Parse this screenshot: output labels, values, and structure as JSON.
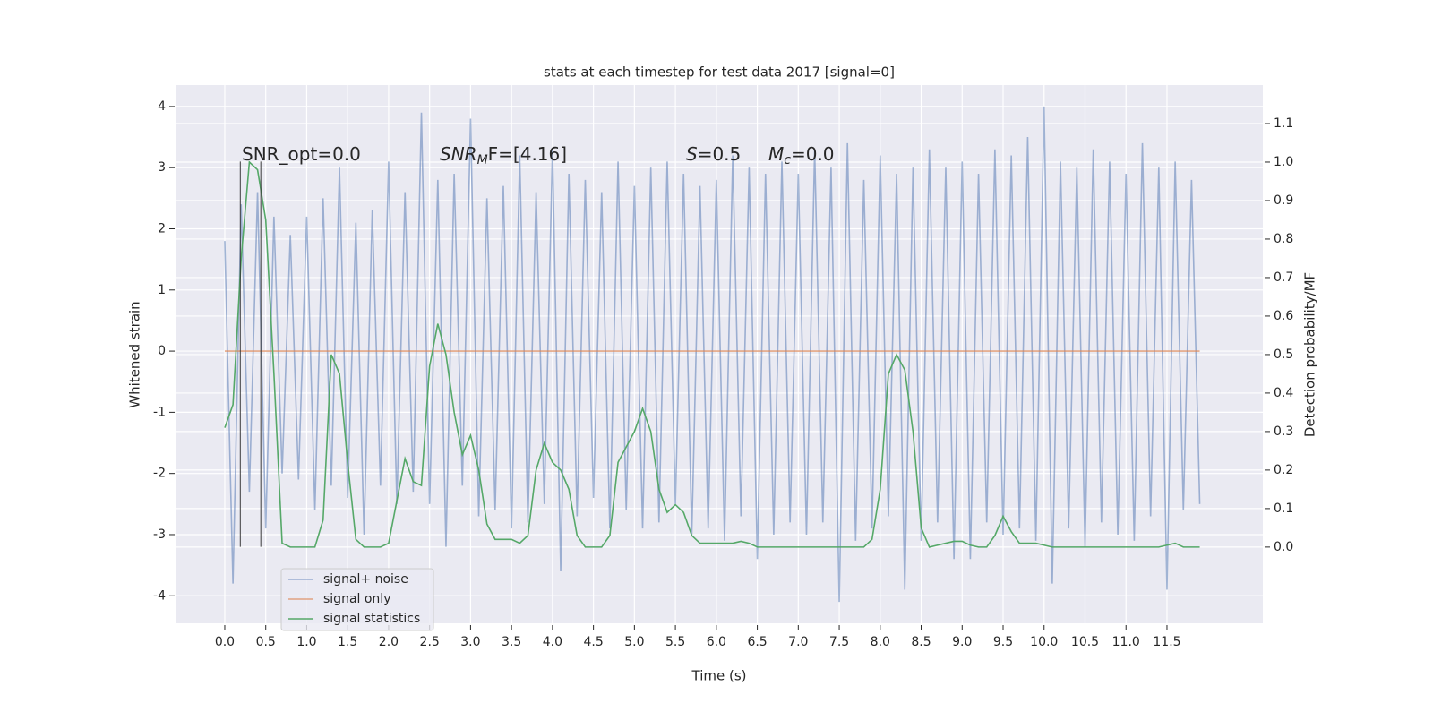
{
  "chart_data": {
    "type": "line",
    "title": "stats at each timestep for test data 2017 [signal=0]",
    "x_label": "Time (s)",
    "y_label": "Whitened strain",
    "y2_label": "Detection probability/MF",
    "annotations": [
      {
        "text": "SNR_opt=0.0"
      },
      {
        "italic": "SNR",
        "sub": "M",
        "rest": "F=[4.16]"
      },
      {
        "italic": "S",
        "rest": "=0.5"
      },
      {
        "italic": "M",
        "sub": "c",
        "rest": "=0.0"
      }
    ],
    "x": [
      0,
      0.1,
      0.2,
      0.3,
      0.4,
      0.5,
      0.6,
      0.7,
      0.8,
      0.9,
      1,
      1.1,
      1.2,
      1.3,
      1.4,
      1.5,
      1.6,
      1.7,
      1.8,
      1.9,
      2,
      2.1,
      2.2,
      2.3,
      2.4,
      2.5,
      2.6,
      2.7,
      2.8,
      2.9,
      3,
      3.1,
      3.2,
      3.3,
      3.4,
      3.5,
      3.6,
      3.7,
      3.8,
      3.9,
      4,
      4.1,
      4.2,
      4.3,
      4.4,
      4.5,
      4.6,
      4.7,
      4.8,
      4.9,
      5,
      5.1,
      5.2,
      5.3,
      5.4,
      5.5,
      5.6,
      5.7,
      5.8,
      5.9,
      6,
      6.1,
      6.2,
      6.3,
      6.4,
      6.5,
      6.6,
      6.7,
      6.8,
      6.9,
      7,
      7.1,
      7.2,
      7.3,
      7.4,
      7.5,
      7.6,
      7.7,
      7.8,
      7.9,
      8,
      8.1,
      8.2,
      8.3,
      8.4,
      8.5,
      8.6,
      8.7,
      8.8,
      8.9,
      9,
      9.1,
      9.2,
      9.3,
      9.4,
      9.5,
      9.6,
      9.7,
      9.8,
      9.9,
      10,
      10.1,
      10.2,
      10.3,
      10.4,
      10.5,
      10.6,
      10.7,
      10.8,
      10.9,
      11,
      11.1,
      11.2,
      11.3,
      11.4,
      11.5,
      11.6,
      11.7,
      11.8,
      11.9
    ],
    "series": [
      {
        "name": "signal+ noise",
        "color": "#4c72b0",
        "opacity": 0.5,
        "values": [
          1.8,
          -3.8,
          2.4,
          -2.3,
          2.6,
          -2.9,
          2.2,
          -2.0,
          1.9,
          -2.1,
          2.2,
          -2.6,
          2.5,
          -2.2,
          3.0,
          -2.4,
          2.1,
          -3.0,
          2.3,
          -2.2,
          3.1,
          -2.5,
          2.6,
          -2.3,
          3.9,
          -2.5,
          2.8,
          -3.2,
          2.9,
          -2.2,
          3.8,
          -2.7,
          2.5,
          -2.6,
          2.7,
          -2.9,
          3.2,
          -2.8,
          2.6,
          -2.5,
          3.3,
          -3.6,
          2.9,
          -2.7,
          2.8,
          -2.4,
          2.6,
          -2.9,
          3.1,
          -2.6,
          2.7,
          -2.9,
          3.0,
          -2.8,
          3.1,
          -2.5,
          2.9,
          -3.0,
          2.7,
          -2.9,
          2.8,
          -3.1,
          3.2,
          -2.7,
          3.0,
          -3.4,
          2.9,
          -3.0,
          3.1,
          -2.8,
          2.9,
          -3.0,
          3.3,
          -2.8,
          3.0,
          -4.1,
          3.4,
          -3.1,
          2.8,
          -2.9,
          3.2,
          -2.7,
          2.9,
          -3.9,
          3.0,
          -3.1,
          3.3,
          -2.8,
          3.0,
          -3.4,
          3.1,
          -3.4,
          2.9,
          -2.8,
          3.3,
          -3.0,
          3.2,
          -2.9,
          3.5,
          -3.1,
          4.0,
          -3.8,
          3.1,
          -2.9,
          3.0,
          -3.2,
          3.3,
          -2.8,
          3.1,
          -3.0,
          2.9,
          -3.1,
          3.4,
          -2.7,
          3.0,
          -3.9,
          3.1,
          -2.6,
          2.8,
          -2.5
        ]
      },
      {
        "name": "signal only",
        "color": "#dd8452",
        "opacity": 0.7,
        "values": [
          0,
          0,
          0,
          0,
          0,
          0,
          0,
          0,
          0,
          0,
          0,
          0,
          0,
          0,
          0,
          0,
          0,
          0,
          0,
          0,
          0,
          0,
          0,
          0,
          0,
          0,
          0,
          0,
          0,
          0,
          0,
          0,
          0,
          0,
          0,
          0,
          0,
          0,
          0,
          0,
          0,
          0,
          0,
          0,
          0,
          0,
          0,
          0,
          0,
          0,
          0,
          0,
          0,
          0,
          0,
          0,
          0,
          0,
          0,
          0,
          0,
          0,
          0,
          0,
          0,
          0,
          0,
          0,
          0,
          0,
          0,
          0,
          0,
          0,
          0,
          0,
          0,
          0,
          0,
          0,
          0,
          0,
          0,
          0,
          0,
          0,
          0,
          0,
          0,
          0,
          0,
          0,
          0,
          0,
          0,
          0,
          0,
          0,
          0,
          0,
          0,
          0,
          0,
          0,
          0,
          0,
          0,
          0,
          0,
          0,
          0,
          0,
          0,
          0,
          0,
          0,
          0,
          0,
          0,
          0
        ]
      },
      {
        "name": "signal statistics",
        "color": "#55a868",
        "opacity": 1,
        "axis": "y2",
        "values": [
          0.31,
          0.37,
          0.75,
          1.0,
          0.98,
          0.85,
          0.45,
          0.01,
          0.0,
          0.0,
          0.0,
          0.0,
          0.07,
          0.5,
          0.45,
          0.22,
          0.02,
          0.0,
          0.0,
          0.0,
          0.01,
          0.12,
          0.23,
          0.17,
          0.16,
          0.47,
          0.58,
          0.5,
          0.35,
          0.24,
          0.29,
          0.2,
          0.06,
          0.02,
          0.02,
          0.02,
          0.01,
          0.03,
          0.2,
          0.27,
          0.22,
          0.2,
          0.15,
          0.03,
          0.0,
          0.0,
          0.0,
          0.03,
          0.22,
          0.26,
          0.3,
          0.36,
          0.3,
          0.15,
          0.09,
          0.11,
          0.09,
          0.03,
          0.01,
          0.01,
          0.01,
          0.01,
          0.01,
          0.015,
          0.01,
          0.0,
          0.0,
          0.0,
          0.0,
          0.0,
          0,
          0,
          0,
          0,
          0,
          0,
          0,
          0,
          0,
          0.02,
          0.15,
          0.45,
          0.5,
          0.46,
          0.3,
          0.05,
          0.0,
          0.005,
          0.01,
          0.015,
          0.015,
          0.005,
          0.0,
          0.0,
          0.03,
          0.08,
          0.04,
          0.01,
          0.01,
          0.01,
          0.005,
          0,
          0,
          0,
          0,
          0,
          0,
          0,
          0,
          0,
          0,
          0,
          0,
          0,
          0,
          0.005,
          0.01,
          0,
          0,
          0
        ]
      }
    ],
    "vlines": [
      0.19,
      0.44
    ],
    "vline_range": [
      -3.2,
      3.1
    ],
    "xlim": [
      -0.59,
      12.67
    ],
    "ylim": [
      -4.45,
      4.35
    ],
    "y2lim": [
      -0.198,
      1.2
    ],
    "xticks": [
      {
        "value": 0,
        "label": "0.0"
      },
      0.5,
      {
        "value": 1,
        "label": "1.0"
      },
      1.5,
      {
        "value": 2,
        "label": "2.0"
      },
      2.5,
      {
        "value": 3,
        "label": "3.0"
      },
      3.5,
      {
        "value": 4,
        "label": "4.0"
      },
      4.5,
      {
        "value": 5,
        "label": "5.0"
      },
      5.5,
      {
        "value": 6,
        "label": "6.0"
      },
      6.5,
      {
        "value": 7,
        "label": "7.0"
      },
      7.5,
      {
        "value": 8,
        "label": "8.0"
      },
      8.5,
      {
        "value": 9,
        "label": "9.0"
      },
      9.5,
      {
        "value": 10,
        "label": "10.0"
      },
      10.5,
      {
        "value": 11,
        "label": "11.0"
      },
      11.5
    ],
    "yticks": [
      -4,
      -3,
      -2,
      -1,
      0,
      1,
      2,
      3,
      4
    ],
    "y2ticks": [
      {
        "value": 0,
        "label": "0.0"
      },
      0.1,
      0.2,
      0.3,
      0.4,
      0.5,
      0.6,
      0.7,
      0.8,
      0.9,
      {
        "value": 1,
        "label": "1.0"
      },
      1.1
    ],
    "grid": true,
    "legend": "lower left"
  }
}
